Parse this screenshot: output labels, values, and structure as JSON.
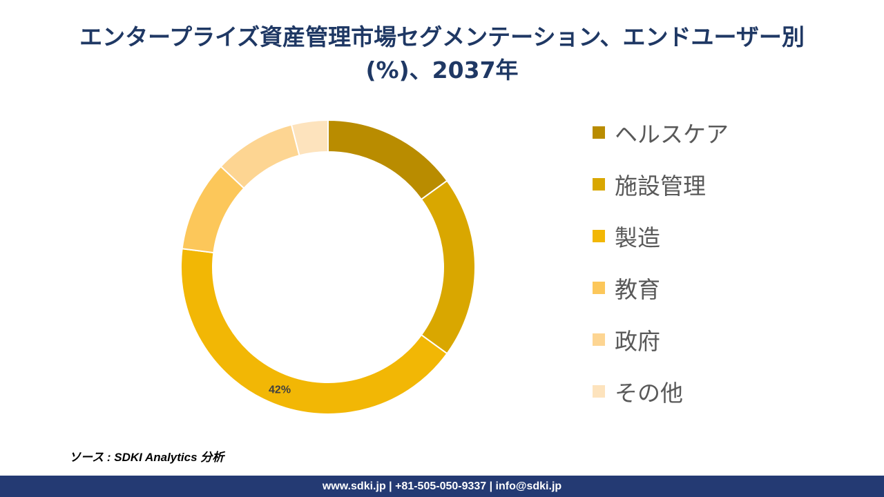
{
  "chart_data": {
    "type": "pie",
    "title_lines": [
      "エンタープライズ資産管理市場セグメンテーション、エンドユーザー別",
      "(%)、2037年"
    ],
    "categories": [
      "ヘルスケア",
      "施設管理",
      "製造",
      "教育",
      "政府",
      "その他"
    ],
    "values": [
      15,
      20,
      42,
      10,
      9,
      4
    ],
    "colors": [
      "#b98c00",
      "#d9a700",
      "#f2b705",
      "#fcc75a",
      "#fdd592",
      "#fde3bd"
    ],
    "data_labels": [
      "",
      "",
      "42%",
      "",
      "",
      ""
    ],
    "legend_position": "right",
    "donut": true
  },
  "source": "ソース : SDKI Analytics 分析",
  "footer": "www.sdki.jp | +81-505-050-9337 | info@sdki.jp"
}
